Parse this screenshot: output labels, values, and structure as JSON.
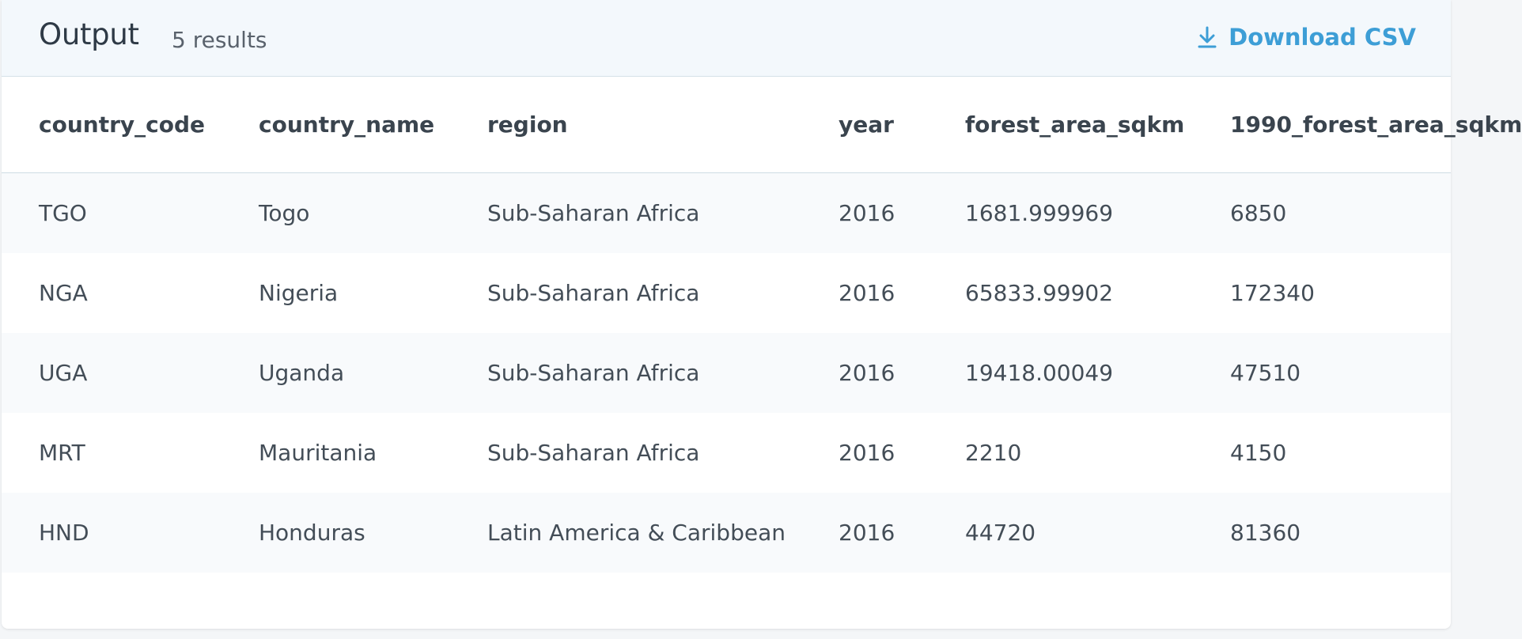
{
  "header": {
    "title": "Output",
    "result_count": "5 results",
    "download_label": "Download CSV",
    "download_icon": "download-icon",
    "accent_color": "#3d9ed6"
  },
  "table": {
    "columns": [
      "country_code",
      "country_name",
      "region",
      "year",
      "forest_area_sqkm",
      "1990_forest_area_sqkm"
    ],
    "rows": [
      [
        "TGO",
        "Togo",
        "Sub-Saharan Africa",
        "2016",
        "1681.999969",
        "6850"
      ],
      [
        "NGA",
        "Nigeria",
        "Sub-Saharan Africa",
        "2016",
        "65833.99902",
        "172340"
      ],
      [
        "UGA",
        "Uganda",
        "Sub-Saharan Africa",
        "2016",
        "19418.00049",
        "47510"
      ],
      [
        "MRT",
        "Mauritania",
        "Sub-Saharan Africa",
        "2016",
        "2210",
        "4150"
      ],
      [
        "HND",
        "Honduras",
        "Latin America & Caribbean",
        "2016",
        "44720",
        "81360"
      ]
    ]
  }
}
